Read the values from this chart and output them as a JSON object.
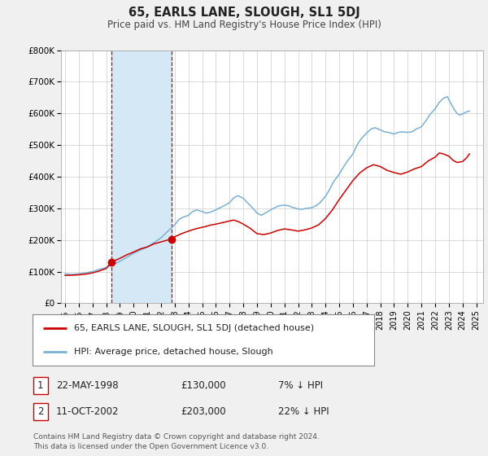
{
  "title": "65, EARLS LANE, SLOUGH, SL1 5DJ",
  "subtitle": "Price paid vs. HM Land Registry's House Price Index (HPI)",
  "ylim": [
    0,
    800000
  ],
  "yticks": [
    0,
    100000,
    200000,
    300000,
    400000,
    500000,
    600000,
    700000,
    800000
  ],
  "ytick_labels": [
    "£0",
    "£100K",
    "£200K",
    "£300K",
    "£400K",
    "£500K",
    "£600K",
    "£700K",
    "£800K"
  ],
  "xlim_start": 1994.7,
  "xlim_end": 2025.5,
  "xtick_years": [
    1995,
    1996,
    1997,
    1998,
    1999,
    2000,
    2001,
    2002,
    2003,
    2004,
    2005,
    2006,
    2007,
    2008,
    2009,
    2010,
    2011,
    2012,
    2013,
    2014,
    2015,
    2016,
    2017,
    2018,
    2019,
    2020,
    2021,
    2022,
    2023,
    2024,
    2025
  ],
  "bg_color": "#f0f0f0",
  "plot_bg_color": "#ffffff",
  "red_line_color": "#cc0000",
  "blue_line_color": "#7ab0d4",
  "marker1_x": 1998.38,
  "marker1_y": 130000,
  "marker2_x": 2002.78,
  "marker2_y": 203000,
  "vline1_x": 1998.38,
  "vline2_x": 2002.78,
  "shade_color": "#d5e8f5",
  "legend_label_red": "65, EARLS LANE, SLOUGH, SL1 5DJ (detached house)",
  "legend_label_blue": "HPI: Average price, detached house, Slough",
  "table_row1_date": "22-MAY-1998",
  "table_row1_price": "£130,000",
  "table_row1_hpi": "7% ↓ HPI",
  "table_row2_date": "11-OCT-2002",
  "table_row2_price": "£203,000",
  "table_row2_hpi": "22% ↓ HPI",
  "footnote1": "Contains HM Land Registry data © Crown copyright and database right 2024.",
  "footnote2": "This data is licensed under the Open Government Licence v3.0.",
  "hpi_anchors": [
    [
      1995.0,
      93000
    ],
    [
      1995.5,
      91000
    ],
    [
      1996.0,
      93000
    ],
    [
      1996.5,
      96000
    ],
    [
      1997.0,
      100000
    ],
    [
      1997.5,
      107000
    ],
    [
      1998.0,
      113000
    ],
    [
      1998.5,
      122000
    ],
    [
      1999.0,
      133000
    ],
    [
      1999.5,
      145000
    ],
    [
      2000.0,
      158000
    ],
    [
      2000.5,
      168000
    ],
    [
      2001.0,
      178000
    ],
    [
      2001.5,
      192000
    ],
    [
      2002.0,
      207000
    ],
    [
      2002.5,
      228000
    ],
    [
      2003.0,
      248000
    ],
    [
      2003.3,
      265000
    ],
    [
      2003.6,
      272000
    ],
    [
      2004.0,
      278000
    ],
    [
      2004.3,
      290000
    ],
    [
      2004.6,
      295000
    ],
    [
      2005.0,
      290000
    ],
    [
      2005.3,
      285000
    ],
    [
      2005.6,
      288000
    ],
    [
      2006.0,
      295000
    ],
    [
      2006.3,
      302000
    ],
    [
      2006.6,
      308000
    ],
    [
      2007.0,
      318000
    ],
    [
      2007.3,
      333000
    ],
    [
      2007.6,
      340000
    ],
    [
      2008.0,
      332000
    ],
    [
      2008.3,
      318000
    ],
    [
      2008.6,
      305000
    ],
    [
      2009.0,
      285000
    ],
    [
      2009.3,
      278000
    ],
    [
      2009.6,
      285000
    ],
    [
      2010.0,
      295000
    ],
    [
      2010.3,
      302000
    ],
    [
      2010.6,
      308000
    ],
    [
      2011.0,
      310000
    ],
    [
      2011.3,
      308000
    ],
    [
      2011.6,
      303000
    ],
    [
      2012.0,
      298000
    ],
    [
      2012.3,
      297000
    ],
    [
      2012.6,
      300000
    ],
    [
      2013.0,
      302000
    ],
    [
      2013.3,
      308000
    ],
    [
      2013.6,
      318000
    ],
    [
      2014.0,
      338000
    ],
    [
      2014.3,
      360000
    ],
    [
      2014.6,
      385000
    ],
    [
      2015.0,
      408000
    ],
    [
      2015.3,
      430000
    ],
    [
      2015.6,
      450000
    ],
    [
      2016.0,
      472000
    ],
    [
      2016.3,
      500000
    ],
    [
      2016.6,
      520000
    ],
    [
      2017.0,
      538000
    ],
    [
      2017.3,
      550000
    ],
    [
      2017.6,
      555000
    ],
    [
      2018.0,
      548000
    ],
    [
      2018.3,
      542000
    ],
    [
      2018.6,
      540000
    ],
    [
      2019.0,
      535000
    ],
    [
      2019.3,
      540000
    ],
    [
      2019.6,
      542000
    ],
    [
      2020.0,
      540000
    ],
    [
      2020.3,
      542000
    ],
    [
      2020.6,
      550000
    ],
    [
      2021.0,
      558000
    ],
    [
      2021.3,
      575000
    ],
    [
      2021.6,
      595000
    ],
    [
      2022.0,
      615000
    ],
    [
      2022.3,
      635000
    ],
    [
      2022.6,
      648000
    ],
    [
      2022.9,
      653000
    ],
    [
      2023.0,
      643000
    ],
    [
      2023.2,
      628000
    ],
    [
      2023.4,
      612000
    ],
    [
      2023.6,
      600000
    ],
    [
      2023.8,
      595000
    ],
    [
      2024.0,
      598000
    ],
    [
      2024.3,
      605000
    ],
    [
      2024.5,
      608000
    ]
  ],
  "red_anchors": [
    [
      1995.0,
      88000
    ],
    [
      1995.5,
      88500
    ],
    [
      1996.0,
      90000
    ],
    [
      1996.5,
      92000
    ],
    [
      1997.0,
      96000
    ],
    [
      1997.5,
      102000
    ],
    [
      1998.0,
      110000
    ],
    [
      1998.38,
      130000
    ],
    [
      1999.0,
      142000
    ],
    [
      1999.5,
      153000
    ],
    [
      2000.0,
      162000
    ],
    [
      2000.5,
      172000
    ],
    [
      2001.0,
      178000
    ],
    [
      2001.5,
      188000
    ],
    [
      2002.0,
      194000
    ],
    [
      2002.5,
      200000
    ],
    [
      2002.78,
      203000
    ],
    [
      2003.0,
      210000
    ],
    [
      2003.5,
      220000
    ],
    [
      2004.0,
      228000
    ],
    [
      2004.5,
      235000
    ],
    [
      2005.0,
      240000
    ],
    [
      2005.3,
      243000
    ],
    [
      2005.6,
      247000
    ],
    [
      2006.0,
      250000
    ],
    [
      2006.5,
      255000
    ],
    [
      2007.0,
      260000
    ],
    [
      2007.3,
      263000
    ],
    [
      2007.7,
      257000
    ],
    [
      2008.0,
      250000
    ],
    [
      2008.5,
      237000
    ],
    [
      2009.0,
      220000
    ],
    [
      2009.5,
      217000
    ],
    [
      2010.0,
      222000
    ],
    [
      2010.5,
      230000
    ],
    [
      2011.0,
      235000
    ],
    [
      2011.5,
      232000
    ],
    [
      2012.0,
      228000
    ],
    [
      2012.5,
      232000
    ],
    [
      2013.0,
      238000
    ],
    [
      2013.5,
      248000
    ],
    [
      2014.0,
      268000
    ],
    [
      2014.5,
      295000
    ],
    [
      2015.0,
      328000
    ],
    [
      2015.5,
      358000
    ],
    [
      2016.0,
      388000
    ],
    [
      2016.5,
      412000
    ],
    [
      2017.0,
      428000
    ],
    [
      2017.5,
      438000
    ],
    [
      2018.0,
      432000
    ],
    [
      2018.5,
      420000
    ],
    [
      2019.0,
      413000
    ],
    [
      2019.5,
      408000
    ],
    [
      2020.0,
      415000
    ],
    [
      2020.5,
      425000
    ],
    [
      2021.0,
      432000
    ],
    [
      2021.5,
      450000
    ],
    [
      2022.0,
      462000
    ],
    [
      2022.3,
      475000
    ],
    [
      2022.6,
      472000
    ],
    [
      2023.0,
      465000
    ],
    [
      2023.3,
      452000
    ],
    [
      2023.6,
      445000
    ],
    [
      2024.0,
      448000
    ],
    [
      2024.3,
      460000
    ],
    [
      2024.5,
      472000
    ]
  ]
}
